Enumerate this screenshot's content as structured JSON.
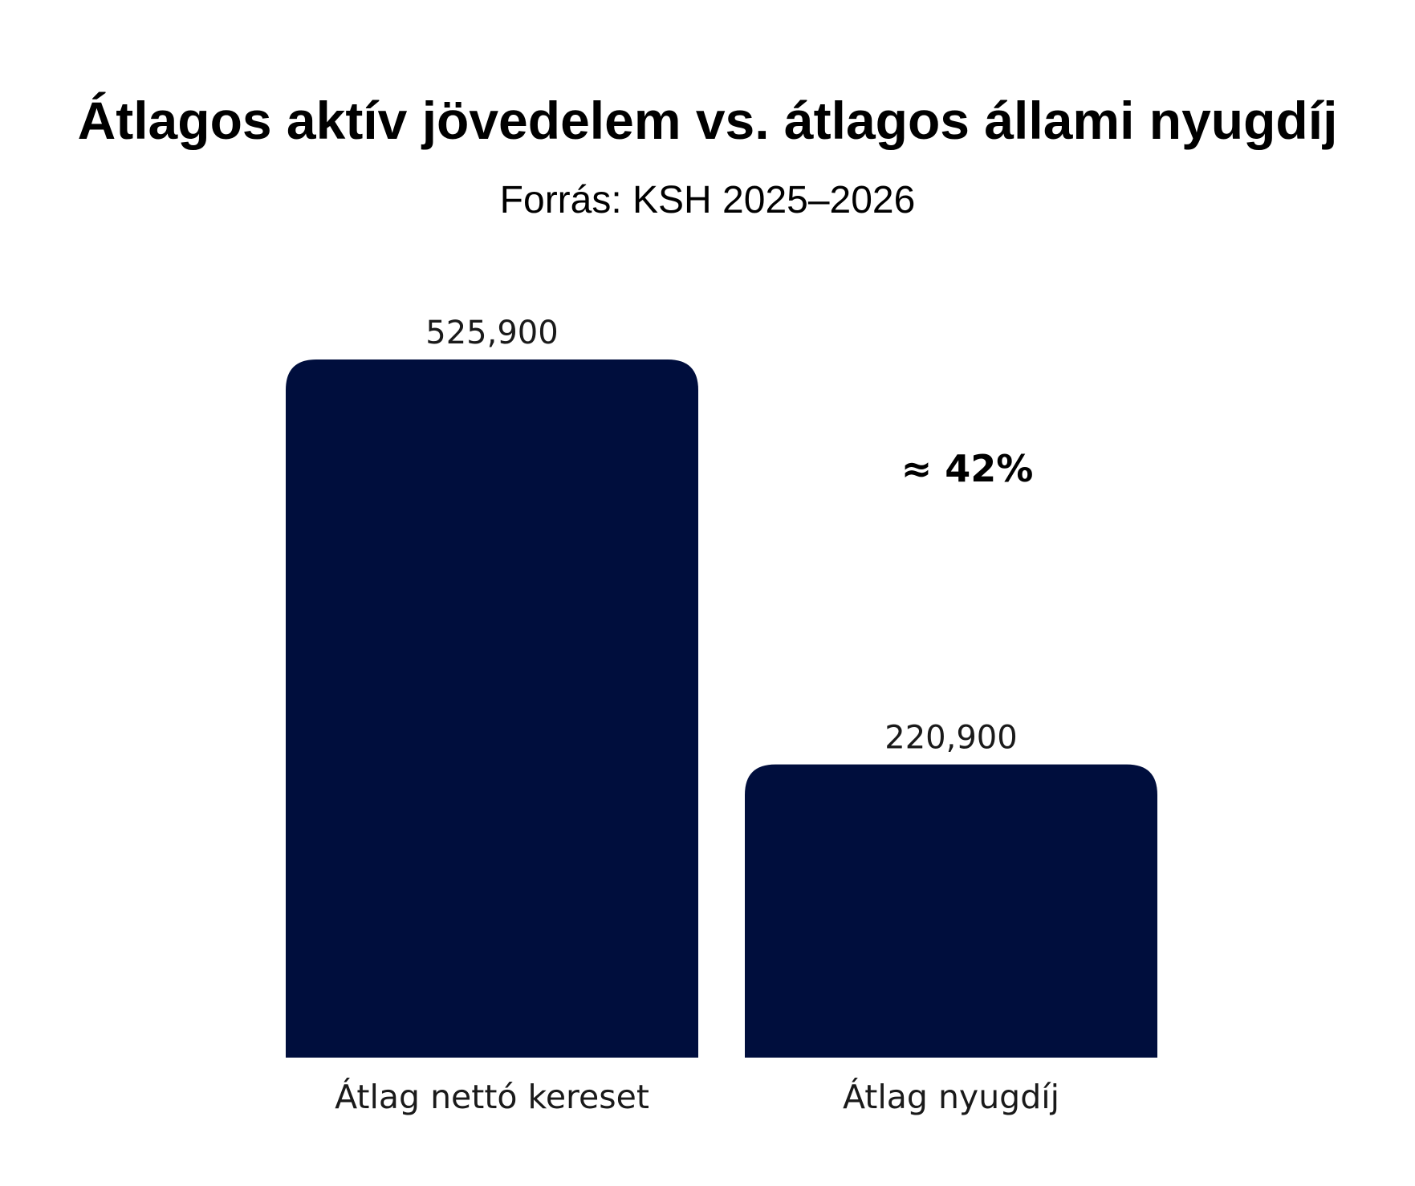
{
  "chart_data": {
    "type": "bar",
    "title": "Átlagos aktív jövedelem vs. átlagos állami nyugdíj",
    "subtitle": "Forrás: KSH 2025–2026",
    "categories": [
      "Átlag nettó kereset",
      "Átlag nyugdíj"
    ],
    "values": [
      525900,
      220900
    ],
    "value_labels": [
      "525,900",
      "220,900"
    ],
    "annotation": "≈ 42%",
    "ylim": [
      0,
      525900
    ],
    "grid": false,
    "bar_color": "#000e3d"
  }
}
